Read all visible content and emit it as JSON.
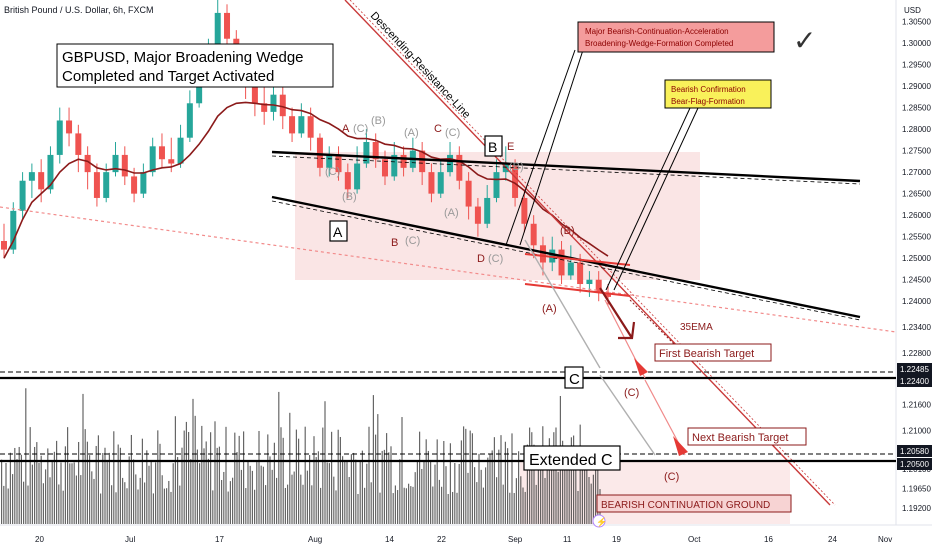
{
  "header": {
    "symbol_line": "British Pound / U.S. Dollar, 6h, FXCM",
    "currency": "USD"
  },
  "chart_data": {
    "type": "candlestick",
    "title": "GBPUSD, Major Broadening Wedge",
    "subtitle": "Completed and Target Activated",
    "ylim": [
      1.188,
      1.31
    ],
    "y_ticks": [
      {
        "v": 1.305,
        "t": "1.30500"
      },
      {
        "v": 1.3,
        "t": "1.30000"
      },
      {
        "v": 1.295,
        "t": "1.29500"
      },
      {
        "v": 1.29,
        "t": "1.29000"
      },
      {
        "v": 1.285,
        "t": "1.28500"
      },
      {
        "v": 1.28,
        "t": "1.28000"
      },
      {
        "v": 1.275,
        "t": "1.27500"
      },
      {
        "v": 1.27,
        "t": "1.27000"
      },
      {
        "v": 1.265,
        "t": "1.26500"
      },
      {
        "v": 1.26,
        "t": "1.26000"
      },
      {
        "v": 1.255,
        "t": "1.25500"
      },
      {
        "v": 1.25,
        "t": "1.25000"
      },
      {
        "v": 1.245,
        "t": "1.24500"
      },
      {
        "v": 1.24,
        "t": "1.24000"
      },
      {
        "v": 1.234,
        "t": "1.23400"
      },
      {
        "v": 1.228,
        "t": "1.22800"
      },
      {
        "v": 1.216,
        "t": "1.21600"
      },
      {
        "v": 1.21,
        "t": "1.21000"
      },
      {
        "v": 1.201,
        "t": "1.20100"
      },
      {
        "v": 1.1965,
        "t": "1.19650"
      },
      {
        "v": 1.192,
        "t": "1.19200"
      }
    ],
    "price_badges": [
      "1.22485",
      "1.22400",
      "1.20580",
      "1.20500"
    ],
    "x_ticks": [
      "20",
      "Jul",
      "17",
      "Aug",
      "14",
      "22",
      "Sep",
      "11",
      "19",
      "Oct",
      "16",
      "24",
      "Nov"
    ],
    "candles": [
      [
        1.254,
        1.252,
        1.258,
        1.25
      ],
      [
        1.252,
        1.261,
        1.263,
        1.251
      ],
      [
        1.261,
        1.268,
        1.27,
        1.259
      ],
      [
        1.268,
        1.27,
        1.272,
        1.264
      ],
      [
        1.27,
        1.266,
        1.273,
        1.263
      ],
      [
        1.266,
        1.274,
        1.276,
        1.265
      ],
      [
        1.274,
        1.282,
        1.285,
        1.272
      ],
      [
        1.282,
        1.279,
        1.285,
        1.276
      ],
      [
        1.279,
        1.274,
        1.281,
        1.27
      ],
      [
        1.274,
        1.27,
        1.276,
        1.266
      ],
      [
        1.27,
        1.264,
        1.272,
        1.262
      ],
      [
        1.264,
        1.27,
        1.272,
        1.263
      ],
      [
        1.27,
        1.274,
        1.277,
        1.269
      ],
      [
        1.274,
        1.269,
        1.276,
        1.267
      ],
      [
        1.269,
        1.265,
        1.271,
        1.263
      ],
      [
        1.265,
        1.27,
        1.272,
        1.264
      ],
      [
        1.27,
        1.276,
        1.278,
        1.269
      ],
      [
        1.276,
        1.273,
        1.279,
        1.271
      ],
      [
        1.273,
        1.272,
        1.278,
        1.27
      ],
      [
        1.272,
        1.278,
        1.281,
        1.271
      ],
      [
        1.278,
        1.286,
        1.289,
        1.277
      ],
      [
        1.286,
        1.292,
        1.295,
        1.285
      ],
      [
        1.292,
        1.299,
        1.301,
        1.29
      ],
      [
        1.299,
        1.307,
        1.312,
        1.298
      ],
      [
        1.307,
        1.301,
        1.309,
        1.298
      ],
      [
        1.301,
        1.294,
        1.303,
        1.292
      ],
      [
        1.294,
        1.29,
        1.298,
        1.287
      ],
      [
        1.29,
        1.286,
        1.292,
        1.283
      ],
      [
        1.286,
        1.284,
        1.29,
        1.281
      ],
      [
        1.284,
        1.288,
        1.291,
        1.282
      ],
      [
        1.288,
        1.283,
        1.29,
        1.28
      ],
      [
        1.283,
        1.279,
        1.285,
        1.277
      ],
      [
        1.279,
        1.283,
        1.286,
        1.278
      ],
      [
        1.283,
        1.278,
        1.285,
        1.275
      ],
      [
        1.278,
        1.271,
        1.279,
        1.269
      ],
      [
        1.271,
        1.274,
        1.276,
        1.269
      ],
      [
        1.274,
        1.27,
        1.276,
        1.268
      ],
      [
        1.27,
        1.266,
        1.272,
        1.264
      ],
      [
        1.266,
        1.272,
        1.276,
        1.265
      ],
      [
        1.272,
        1.277,
        1.28,
        1.271
      ],
      [
        1.277,
        1.273,
        1.279,
        1.271
      ],
      [
        1.273,
        1.269,
        1.275,
        1.267
      ],
      [
        1.269,
        1.274,
        1.277,
        1.268
      ],
      [
        1.274,
        1.271,
        1.276,
        1.269
      ],
      [
        1.271,
        1.275,
        1.278,
        1.27
      ],
      [
        1.275,
        1.27,
        1.277,
        1.267
      ],
      [
        1.27,
        1.265,
        1.272,
        1.263
      ],
      [
        1.265,
        1.27,
        1.273,
        1.264
      ],
      [
        1.27,
        1.274,
        1.277,
        1.269
      ],
      [
        1.274,
        1.268,
        1.276,
        1.266
      ],
      [
        1.268,
        1.262,
        1.27,
        1.259
      ],
      [
        1.262,
        1.258,
        1.264,
        1.255
      ],
      [
        1.258,
        1.264,
        1.267,
        1.257
      ],
      [
        1.264,
        1.27,
        1.273,
        1.263
      ],
      [
        1.27,
        1.272,
        1.276,
        1.268
      ],
      [
        1.272,
        1.264,
        1.273,
        1.262
      ],
      [
        1.264,
        1.258,
        1.266,
        1.256
      ],
      [
        1.258,
        1.253,
        1.26,
        1.25
      ],
      [
        1.253,
        1.249,
        1.255,
        1.246
      ],
      [
        1.249,
        1.252,
        1.255,
        1.247
      ],
      [
        1.252,
        1.246,
        1.254,
        1.244
      ],
      [
        1.246,
        1.249,
        1.253,
        1.245
      ],
      [
        1.249,
        1.244,
        1.251,
        1.242
      ],
      [
        1.244,
        1.245,
        1.247,
        1.241
      ],
      [
        1.245,
        1.242,
        1.247,
        1.24
      ],
      [
        1.242,
        1.241,
        1.244,
        1.239
      ]
    ],
    "ema": [
      1.25,
      1.254,
      1.259,
      1.263,
      1.265,
      1.267,
      1.27,
      1.272,
      1.273,
      1.2725,
      1.271,
      1.2705,
      1.2708,
      1.2705,
      1.2698,
      1.2698,
      1.2705,
      1.271,
      1.2712,
      1.272,
      1.274,
      1.2765,
      1.2795,
      1.283,
      1.285,
      1.286,
      1.2862,
      1.286,
      1.2857,
      1.2856,
      1.2852,
      1.2845,
      1.2843,
      1.2836,
      1.2822,
      1.2813,
      1.28,
      1.2784,
      1.2778,
      1.2778,
      1.2774,
      1.2765,
      1.2762,
      1.2755,
      1.2754,
      1.2747,
      1.2735,
      1.273,
      1.2731,
      1.2726,
      1.2712,
      1.2694,
      1.2684,
      1.2683,
      1.2684,
      1.2674,
      1.2657,
      1.2637,
      1.2614,
      1.26,
      1.258,
      1.2566,
      1.2548,
      1.2534,
      1.2519,
      1.2505
    ],
    "annotations": {
      "resistance_label": "Descending-Resistance-Line",
      "bearish_continuation_box": "Major Bearish-Continuation-Acceleration\nBroadening-Wedge-Formation Completed",
      "bearish_confirmation_box": "Bearish Confirmation\nBear-Flag-Formation",
      "ema_label": "35EMA",
      "first_target": "First Bearish Target",
      "next_target": "Next Bearish Target",
      "ground_label": "BEARISH CONTINUATION GROUND",
      "wave_c": "C",
      "wave_extended_c": "Extended C",
      "wave_A_box": "A",
      "wave_B_box": "B",
      "waves": [
        "A",
        "(C)",
        "(B)",
        "(A)",
        "C",
        "(C)",
        "E",
        "(B)",
        "(A)",
        "B",
        "(C)",
        "D",
        "(C)",
        "(B)",
        "(A)",
        "(C)",
        "(C)",
        "(B)",
        "(C)"
      ],
      "checkmark": "✓"
    },
    "colors": {
      "up": "#26a69a",
      "down": "#ef5350",
      "ema": "#8b1a1a",
      "wedge": "#000000",
      "zone": "#f4c7c7",
      "dotted": "#f28b8b"
    }
  }
}
